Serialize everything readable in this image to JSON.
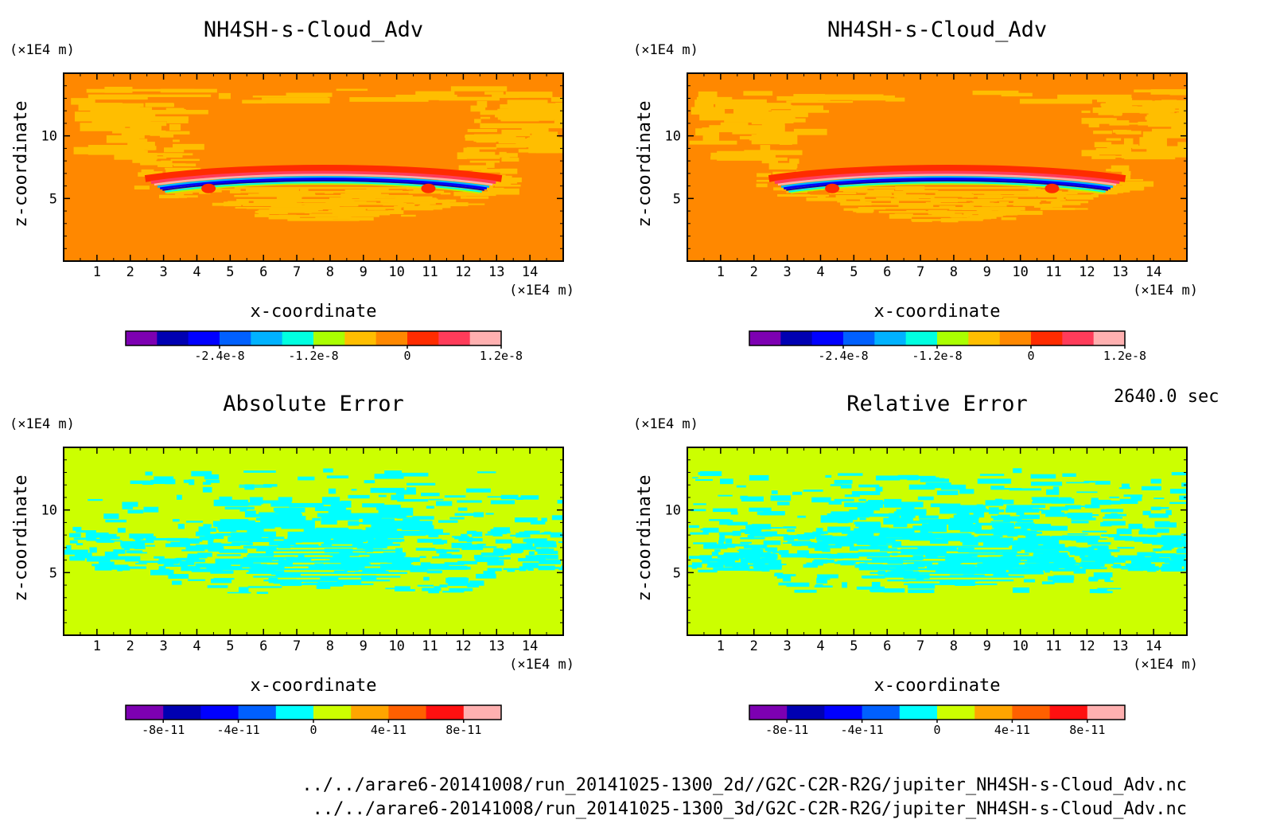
{
  "time_stamp": "2640.0 sec",
  "footer": {
    "line1": "../../arare6-20141008/run_20141025-1300_2d//G2C-C2R-R2G/jupiter_NH4SH-s-Cloud_Adv.nc",
    "line2": "../../arare6-20141008/run_20141025-1300_3d/G2C-C2R-R2G/jupiter_NH4SH-s-Cloud_Adv.nc"
  },
  "chart_data": [
    {
      "type": "heatmap",
      "title": "NH4SH-s-Cloud_Adv",
      "xlabel": "x-coordinate",
      "ylabel": "z-coordinate",
      "x_unit": "(×1E4 m)",
      "z_unit": "(×1E4 m)",
      "xlim": [
        0,
        15
      ],
      "zlim": [
        0,
        15
      ],
      "xticks": [
        1,
        2,
        3,
        4,
        5,
        6,
        7,
        8,
        9,
        10,
        11,
        12,
        13,
        14
      ],
      "zticks": [
        5,
        10
      ],
      "colorbar": {
        "colors": [
          "#7d00b2",
          "#0000b2",
          "#0000ff",
          "#0060ff",
          "#00b2ff",
          "#00ffe0",
          "#aaff00",
          "#ffbe00",
          "#ff8800",
          "#ff2c00",
          "#ff3c5a",
          "#ffb0b0"
        ],
        "tick_labels": [
          "-2.4e-8",
          "-1.2e-8",
          "0",
          "1.2e-8"
        ],
        "tick_values": [
          -2.4e-08,
          -1.2e-08,
          0,
          1.2e-08
        ],
        "range": [
          -3.6e-08,
          1.2e-08
        ]
      },
      "background_color": "#ff8800",
      "pattern_color": "#ffbe00",
      "field": "cloud"
    },
    {
      "type": "heatmap",
      "title": "NH4SH-s-Cloud_Adv",
      "xlabel": "x-coordinate",
      "ylabel": "z-coordinate",
      "x_unit": "(×1E4 m)",
      "z_unit": "(×1E4 m)",
      "xlim": [
        0,
        15
      ],
      "zlim": [
        0,
        15
      ],
      "xticks": [
        1,
        2,
        3,
        4,
        5,
        6,
        7,
        8,
        9,
        10,
        11,
        12,
        13,
        14
      ],
      "zticks": [
        5,
        10
      ],
      "colorbar": {
        "colors": [
          "#7d00b2",
          "#0000b2",
          "#0000ff",
          "#0060ff",
          "#00b2ff",
          "#00ffe0",
          "#aaff00",
          "#ffbe00",
          "#ff8800",
          "#ff2c00",
          "#ff3c5a",
          "#ffb0b0"
        ],
        "tick_labels": [
          "-2.4e-8",
          "-1.2e-8",
          "0",
          "1.2e-8"
        ],
        "tick_values": [
          -2.4e-08,
          -1.2e-08,
          0,
          1.2e-08
        ],
        "range": [
          -3.6e-08,
          1.2e-08
        ]
      },
      "background_color": "#ff8800",
      "pattern_color": "#ffbe00",
      "field": "cloud"
    },
    {
      "type": "heatmap",
      "title": "Absolute Error",
      "xlabel": "x-coordinate",
      "ylabel": "z-coordinate",
      "x_unit": "(×1E4 m)",
      "z_unit": "(×1E4 m)",
      "xlim": [
        0,
        15
      ],
      "zlim": [
        0,
        15
      ],
      "xticks": [
        1,
        2,
        3,
        4,
        5,
        6,
        7,
        8,
        9,
        10,
        11,
        12,
        13,
        14
      ],
      "zticks": [
        5,
        10
      ],
      "colorbar": {
        "colors": [
          "#7d00b2",
          "#0000b2",
          "#0000ff",
          "#0060ff",
          "#00ffff",
          "#ccff00",
          "#ffa500",
          "#ff6000",
          "#ff1010",
          "#ffb0b0"
        ],
        "tick_labels": [
          "-8e-11",
          "-4e-11",
          "0",
          "4e-11",
          "8e-11"
        ],
        "tick_values": [
          -8e-11,
          -4e-11,
          0,
          4e-11,
          8e-11
        ],
        "range": [
          -1e-10,
          1e-10
        ]
      },
      "background_color": "#ccff00",
      "pattern_color": "#00ffff",
      "field": "error"
    },
    {
      "type": "heatmap",
      "title": "Relative Error",
      "xlabel": "x-coordinate",
      "ylabel": "z-coordinate",
      "x_unit": "(×1E4 m)",
      "z_unit": "(×1E4 m)",
      "xlim": [
        0,
        15
      ],
      "zlim": [
        0,
        15
      ],
      "xticks": [
        1,
        2,
        3,
        4,
        5,
        6,
        7,
        8,
        9,
        10,
        11,
        12,
        13,
        14
      ],
      "zticks": [
        5,
        10
      ],
      "colorbar": {
        "colors": [
          "#7d00b2",
          "#0000b2",
          "#0000ff",
          "#0060ff",
          "#00ffff",
          "#ccff00",
          "#ffa500",
          "#ff6000",
          "#ff1010",
          "#ffb0b0"
        ],
        "tick_labels": [
          "-8e-11",
          "-4e-11",
          "0",
          "4e-11",
          "8e-11"
        ],
        "tick_values": [
          -8e-11,
          -4e-11,
          0,
          4e-11,
          8e-11
        ],
        "range": [
          -1e-10,
          1e-10
        ]
      },
      "background_color": "#ccff00",
      "pattern_color": "#00ffff",
      "field": "error"
    }
  ]
}
